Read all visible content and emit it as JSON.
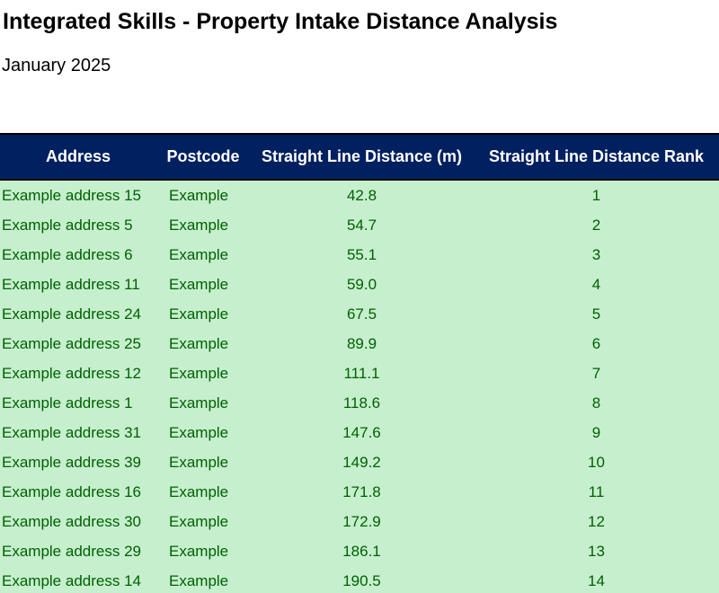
{
  "title": "Integrated Skills - Property Intake Distance Analysis",
  "subtitle": "January 2025",
  "table": {
    "headers": [
      "Address",
      "Postcode",
      "Straight Line Distance (m)",
      "Straight Line Distance Rank"
    ],
    "rows": [
      {
        "address": "Example address 15",
        "postcode": "Example",
        "distance": "42.8",
        "rank": "1"
      },
      {
        "address": "Example address 5",
        "postcode": "Example",
        "distance": "54.7",
        "rank": "2"
      },
      {
        "address": "Example address 6",
        "postcode": "Example",
        "distance": "55.1",
        "rank": "3"
      },
      {
        "address": "Example address 11",
        "postcode": "Example",
        "distance": "59.0",
        "rank": "4"
      },
      {
        "address": "Example address 24",
        "postcode": "Example",
        "distance": "67.5",
        "rank": "5"
      },
      {
        "address": "Example address 25",
        "postcode": "Example",
        "distance": "89.9",
        "rank": "6"
      },
      {
        "address": "Example address 12",
        "postcode": "Example",
        "distance": "111.1",
        "rank": "7"
      },
      {
        "address": "Example address 1",
        "postcode": "Example",
        "distance": "118.6",
        "rank": "8"
      },
      {
        "address": "Example address 31",
        "postcode": "Example",
        "distance": "147.6",
        "rank": "9"
      },
      {
        "address": "Example address 39",
        "postcode": "Example",
        "distance": "149.2",
        "rank": "10"
      },
      {
        "address": "Example address 16",
        "postcode": "Example",
        "distance": "171.8",
        "rank": "11"
      },
      {
        "address": "Example address 30",
        "postcode": "Example",
        "distance": "172.9",
        "rank": "12"
      },
      {
        "address": "Example address 29",
        "postcode": "Example",
        "distance": "186.1",
        "rank": "13"
      },
      {
        "address": "Example address 14",
        "postcode": "Example",
        "distance": "190.5",
        "rank": "14"
      }
    ]
  },
  "colors": {
    "header_background": "#002060",
    "header_text": "#ffffff",
    "row_background": "#c6efce",
    "row_text": "#006100"
  }
}
